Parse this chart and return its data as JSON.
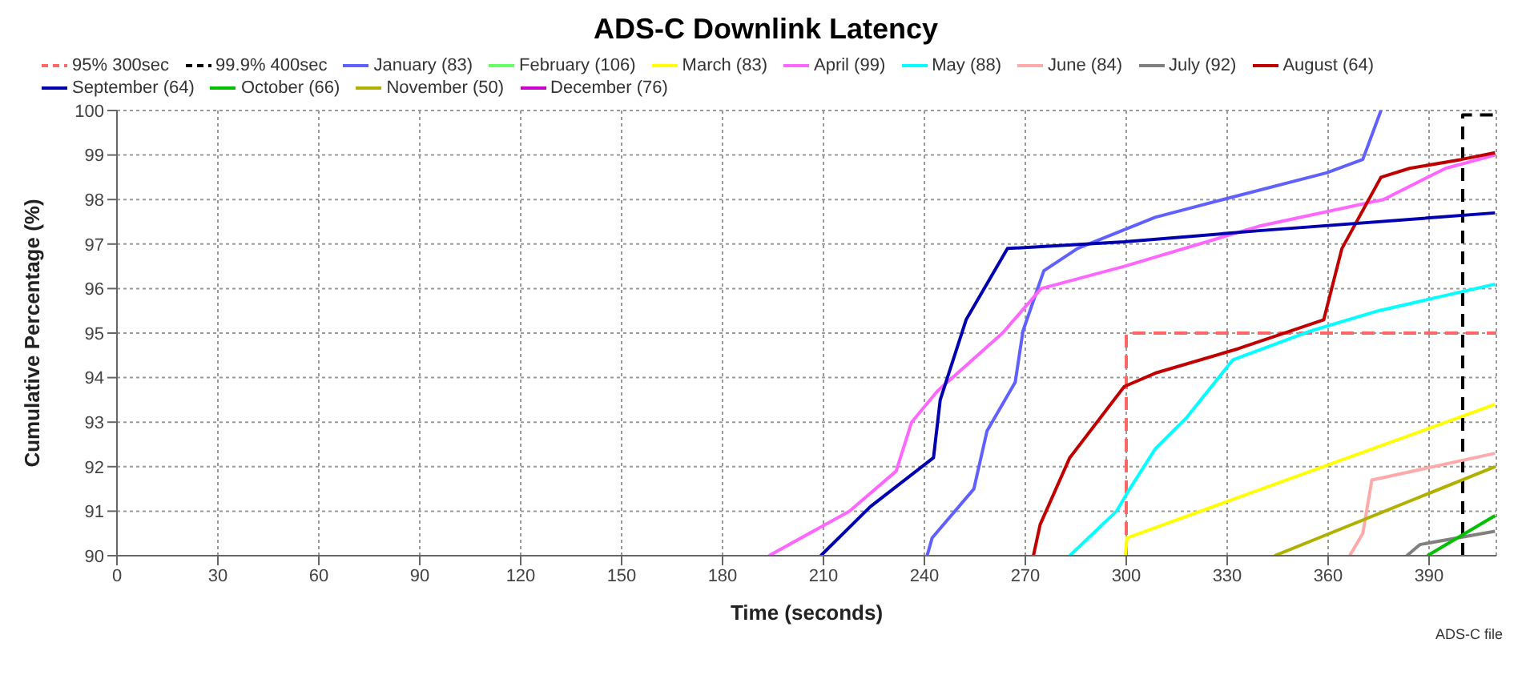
{
  "chart_data": {
    "type": "line",
    "title": "ADS-C Downlink Latency",
    "xlabel": "Time (seconds)",
    "ylabel": "Cumulative Percentage (%)",
    "xlim": [
      0,
      410
    ],
    "xticks": [
      0,
      30,
      60,
      90,
      120,
      150,
      180,
      210,
      240,
      270,
      300,
      330,
      360,
      390
    ],
    "ylim": [
      90,
      100
    ],
    "yticks": [
      90,
      91,
      92,
      93,
      94,
      95,
      96,
      97,
      98,
      99,
      100
    ],
    "grid": true,
    "legend": "top",
    "marker": "none",
    "line_style": "solid",
    "annotations": [
      "ADS-C file"
    ],
    "series": [
      {
        "name": "95% 300sec",
        "color": "#ff6666",
        "line_style": "dashed",
        "x": [
          300,
          300,
          410
        ],
        "values": [
          90,
          95,
          95
        ]
      },
      {
        "name": "99.9% 400sec",
        "color": "#000000",
        "line_style": "dashed",
        "x": [
          400,
          400,
          410
        ],
        "values": [
          90,
          99.9,
          99.9
        ]
      },
      {
        "name": "January (83)",
        "color": "#6060ff",
        "x": [
          240.8,
          242.3,
          254.7,
          258.6,
          267,
          269.3,
          275.5,
          285.5,
          308.6,
          328.7,
          359.5,
          370.3,
          375.7
        ],
        "values": [
          90,
          90.4,
          91.5,
          92.8,
          93.9,
          95.05,
          96.4,
          96.9,
          97.6,
          98,
          98.6,
          98.9,
          100
        ]
      },
      {
        "name": "February (106)",
        "color": "#66ff66"
      },
      {
        "name": "March (83)",
        "color": "#ffff00",
        "x": [
          299.7,
          300.2,
          409.6
        ],
        "values": [
          90,
          90.4,
          93.4
        ]
      },
      {
        "name": "April (99)",
        "color": "#ff66ff",
        "x": [
          193.8,
          217.7,
          231.6,
          236.2,
          243.9,
          263.2,
          274.7,
          299.4,
          339.4,
          376.4,
          394.9,
          409.6
        ],
        "values": [
          90,
          91,
          91.9,
          93,
          93.7,
          95,
          96,
          96.5,
          97.4,
          98,
          98.7,
          99
        ]
      },
      {
        "name": "May (88)",
        "color": "#00ffff",
        "x": [
          283.2,
          297.1,
          300.2,
          308.6,
          317.9,
          331.7,
          354.9,
          374.9,
          409.6
        ],
        "values": [
          90,
          91,
          91.4,
          92.4,
          93.1,
          94.4,
          95.05,
          95.5,
          96.1
        ]
      },
      {
        "name": "June (84)",
        "color": "#ffaaaa",
        "x": [
          366.4,
          370.3,
          373,
          409.6
        ],
        "values": [
          90,
          90.5,
          91.7,
          92.3
        ]
      },
      {
        "name": "July (92)",
        "color": "#808080",
        "x": [
          383.4,
          387.3,
          409.6
        ],
        "values": [
          90,
          90.25,
          90.55
        ]
      },
      {
        "name": "August (64)",
        "color": "#c00000",
        "x": [
          272.4,
          274.4,
          283.2,
          299.4,
          308.6,
          333.3,
          358.7,
          364.1,
          375.7,
          384.2,
          399.6,
          409.6
        ],
        "values": [
          90,
          90.7,
          92.2,
          93.8,
          94.1,
          94.65,
          95.3,
          96.9,
          98.5,
          98.7,
          98.9,
          99.05
        ]
      },
      {
        "name": "September (64)",
        "color": "#0000b0",
        "x": [
          209.2,
          223.9,
          242.7,
          244.7,
          252.4,
          264.7,
          299.4,
          339.4,
          409.6
        ],
        "values": [
          90,
          91.1,
          92.2,
          93.5,
          95.3,
          96.9,
          97.05,
          97.3,
          97.7
        ]
      },
      {
        "name": "October (66)",
        "color": "#00c000",
        "x": [
          389.5,
          409.6
        ],
        "values": [
          90,
          90.9
        ]
      },
      {
        "name": "November (50)",
        "color": "#b0b000",
        "x": [
          344.1,
          409.6
        ],
        "values": [
          90,
          92
        ]
      },
      {
        "name": "December (76)",
        "color": "#cc00cc"
      }
    ]
  }
}
